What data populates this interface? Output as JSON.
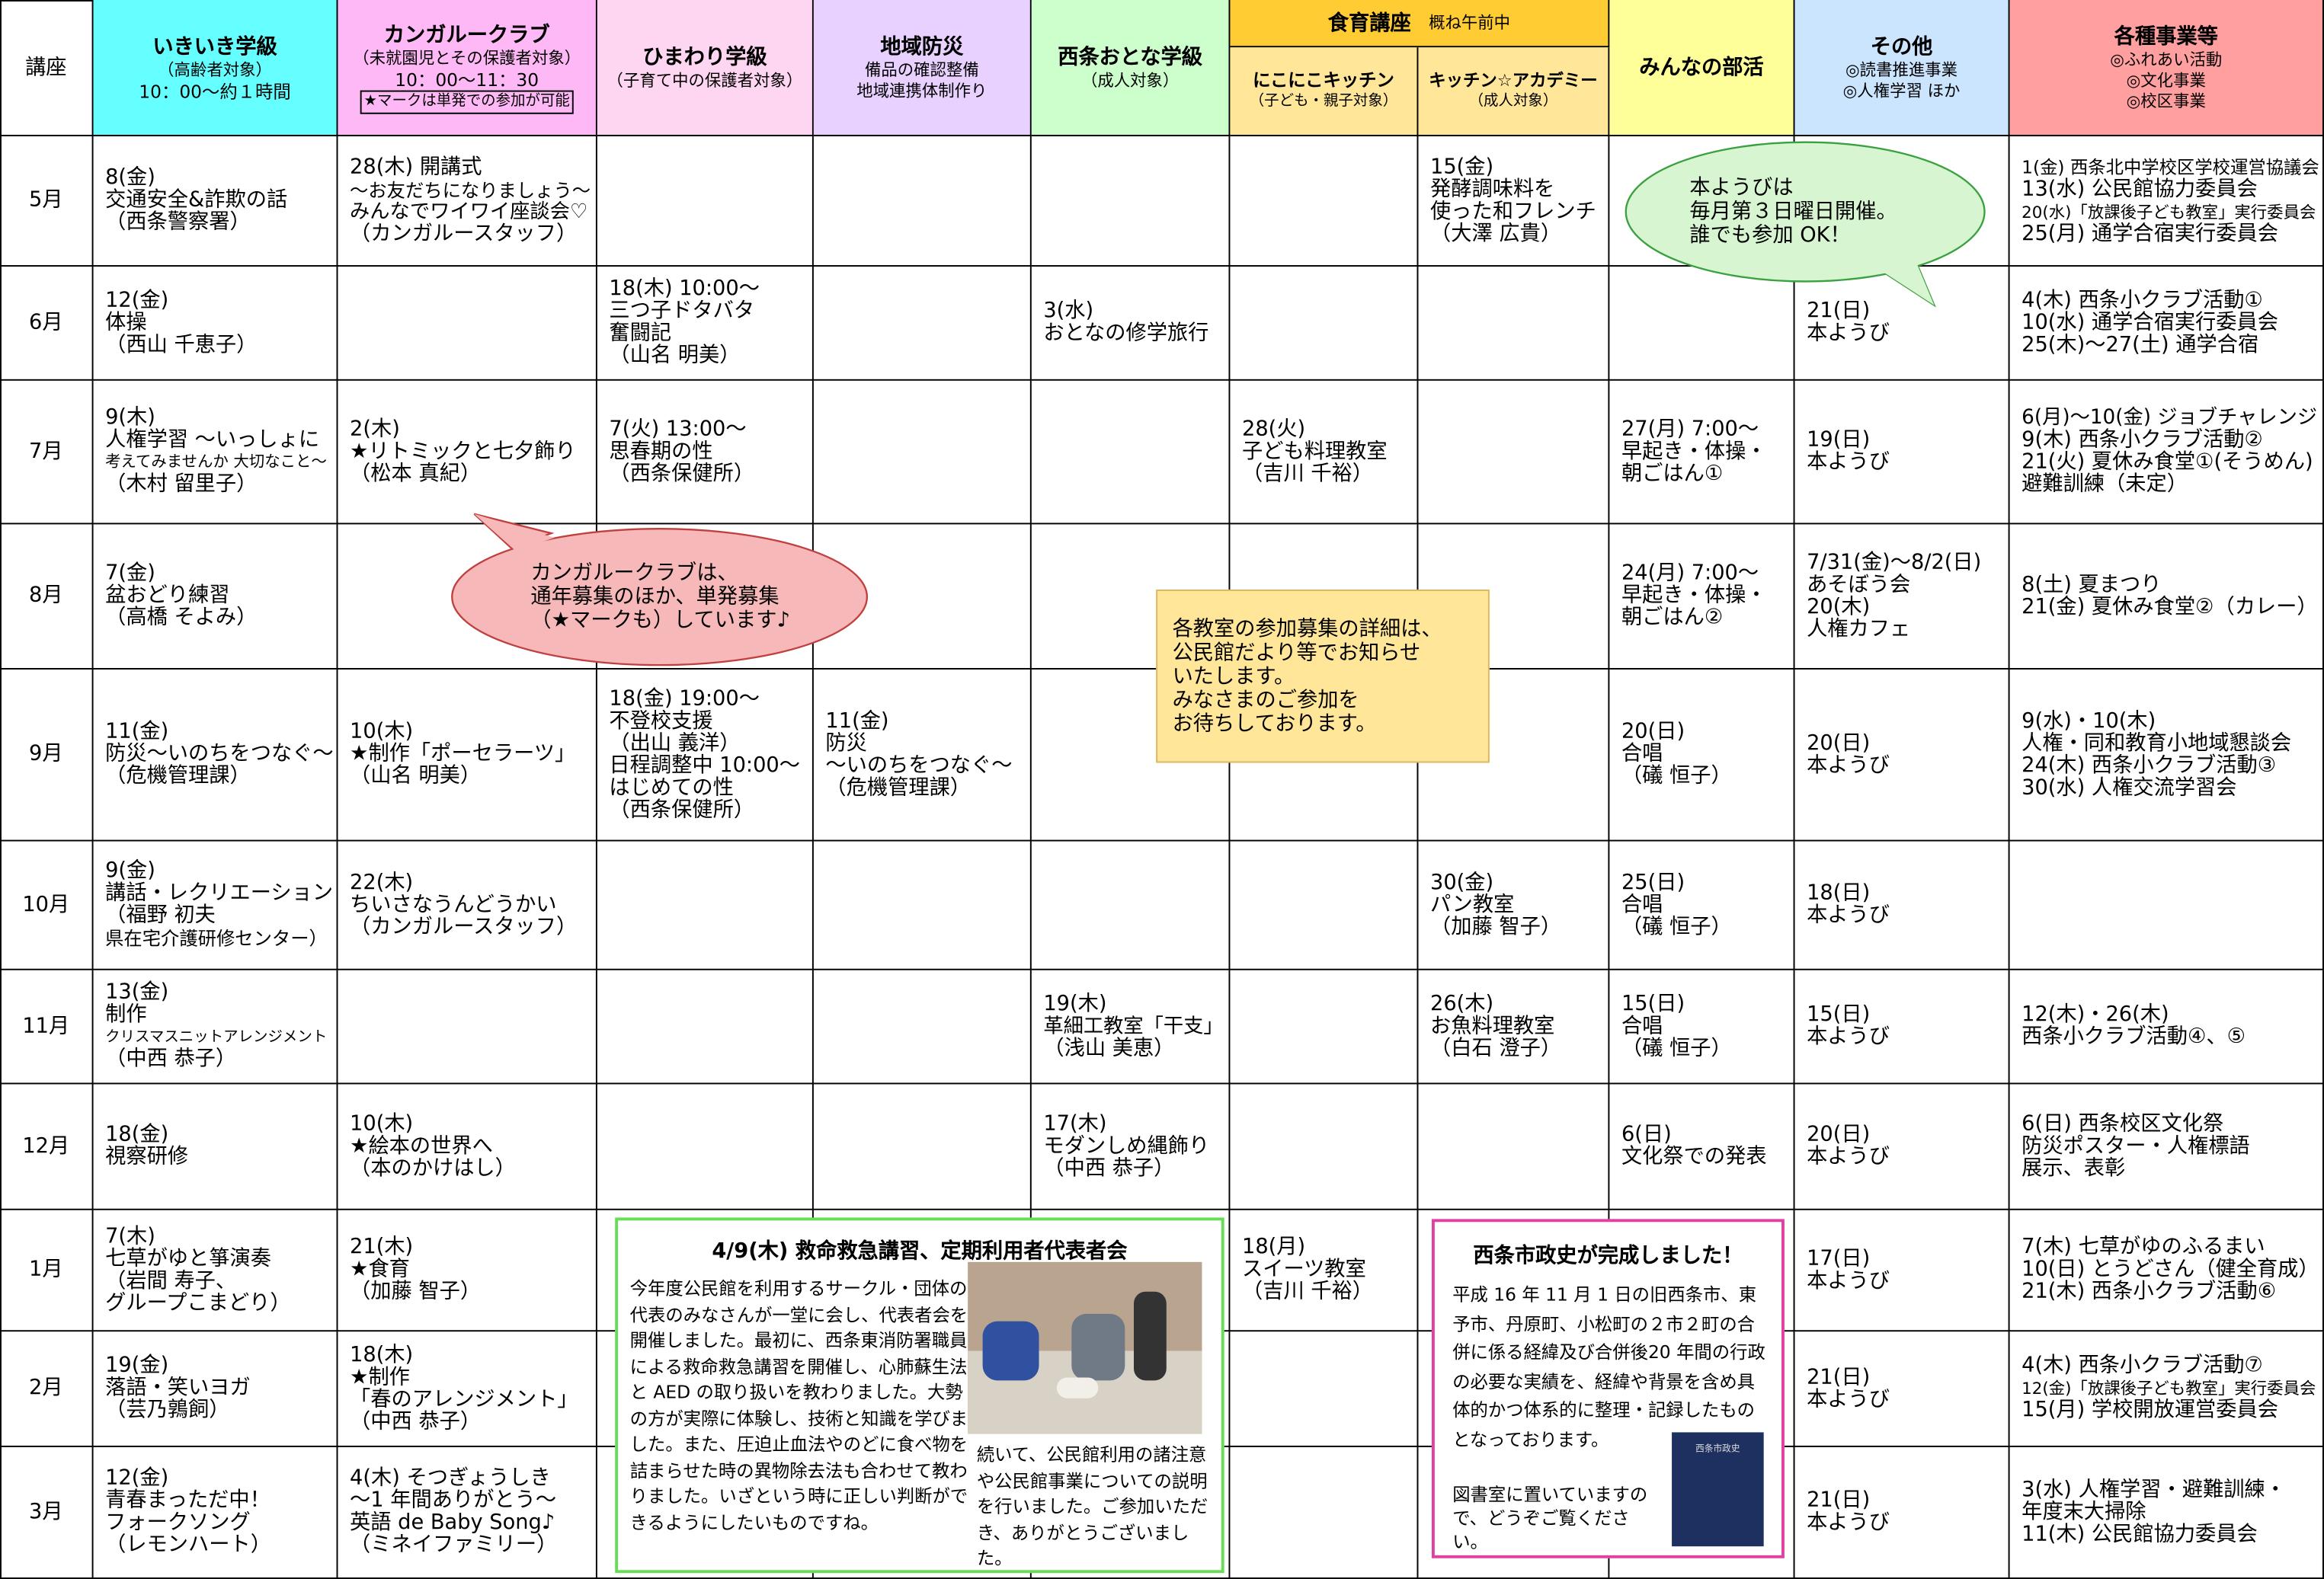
{
  "header": {
    "corner": "講座",
    "columns": [
      {
        "title": "いきいき学級",
        "lines": [
          "（高齢者対象）",
          "10：00～約１時間"
        ]
      },
      {
        "title": "カンガルークラブ",
        "lines": [
          "（未就園児とその保護者対象）",
          "10：00～11：30",
          "★マークは単発での参加が可能"
        ]
      },
      {
        "title": "ひまわり学級",
        "lines": [
          "（子育て中の保護者対象）"
        ]
      },
      {
        "title": "地域防災",
        "lines": [
          "備品の確認整備",
          "地域連携体制作り"
        ]
      },
      {
        "title": "西条おとな学級",
        "lines": [
          "（成人対象）"
        ]
      },
      {
        "title": "にこにこキッチン",
        "lines": [
          "（子ども・親子対象）"
        ]
      },
      {
        "title": "キッチン☆アカデミー",
        "lines": [
          "（成人対象）"
        ]
      },
      {
        "title": "みんなの部活",
        "lines": []
      },
      {
        "title": "その他",
        "lines": [
          "◎読書推進事業",
          "◎人権学習 ほか"
        ]
      },
      {
        "title": "各種事業等",
        "lines": [
          "◎ふれあい活動",
          "◎文化事業",
          "◎校区事業"
        ]
      }
    ],
    "food_group": {
      "title": "食育講座",
      "note": "概ね午前中"
    }
  },
  "table": {
    "rows": [
      {
        "month": "5月",
        "cells": [
          [
            "8(金)",
            "交通安全&詐欺の話",
            "（西条警察署）"
          ],
          [
            "28(木) 開講式",
            "～お友だちになりましょう～",
            "みんなでワイワイ座談会♡",
            "（カンガルースタッフ）"
          ],
          [],
          [],
          [],
          [],
          [
            "15(金)",
            "発酵調味料を",
            "使った和フレンチ",
            "（大澤 広貴）"
          ],
          [],
          [],
          [
            "1(金) 西条北中学校区学校運営協議会",
            "13(水) 公民館協力委員会",
            "20(水)「放課後子ども教室」実行委員会",
            "25(月) 通学合宿実行委員会"
          ]
        ]
      },
      {
        "month": "6月",
        "cells": [
          [
            "12(金)",
            "体操",
            "（西山 千恵子）"
          ],
          [],
          [
            "18(木) 10:00～",
            "三つ子ドタバタ",
            "奮闘記",
            "（山名 明美）"
          ],
          [],
          [
            "3(水)",
            "おとなの修学旅行"
          ],
          [],
          [],
          [],
          [
            "21(日)",
            "本ようび"
          ],
          [
            "4(木) 西条小クラブ活動①",
            "10(水) 通学合宿実行委員会",
            "25(木)～27(土) 通学合宿"
          ]
        ]
      },
      {
        "month": "7月",
        "cells": [
          [
            "9(木)",
            "人権学習 ～いっしょに",
            "考えてみませんか 大切なこと～",
            "（木村 留里子）"
          ],
          [
            "2(木)",
            "★リトミックと七夕飾り",
            "（松本 真紀）"
          ],
          [
            "7(火) 13:00～",
            "思春期の性",
            "（西条保健所）"
          ],
          [],
          [],
          [
            "28(火)",
            "子ども料理教室",
            "（吉川 千裕）"
          ],
          [],
          [
            "27(月) 7:00～",
            "早起き・体操・",
            "朝ごはん①"
          ],
          [
            "19(日)",
            "本ようび"
          ],
          [
            "6(月)～10(金) ジョブチャレンジ",
            "9(木) 西条小クラブ活動②",
            "21(火) 夏休み食堂①(そうめん)",
            "避難訓練（未定）"
          ]
        ]
      },
      {
        "month": "8月",
        "cells": [
          [
            "7(金)",
            "盆おどり練習",
            "（高橋 そよみ）"
          ],
          [],
          [],
          [],
          [],
          [],
          [],
          [
            "24(月) 7:00～",
            "早起き・体操・",
            "朝ごはん②"
          ],
          [
            "7/31(金)～8/2(日)",
            "あそぼう会",
            "20(木)",
            "人権カフェ"
          ],
          [
            "8(土) 夏まつり",
            "21(金) 夏休み食堂②（カレー）"
          ]
        ]
      },
      {
        "month": "9月",
        "cells": [
          [
            "11(金)",
            "防災～いのちをつなぐ～",
            "（危機管理課）"
          ],
          [
            "10(木)",
            "★制作「ポーセラーツ」",
            "（山名 明美）"
          ],
          [
            "18(金) 19:00～",
            "不登校支援",
            "（出山 義洋）",
            "日程調整中 10:00～",
            "はじめての性",
            "（西条保健所）"
          ],
          [
            "11(金)",
            "防災",
            "～いのちをつなぐ～",
            "（危機管理課）"
          ],
          [],
          [],
          [],
          [
            "20(日)",
            "合唱",
            "（礒 恒子）"
          ],
          [
            "20(日)",
            "本ようび"
          ],
          [
            "9(水)・10(木)",
            "人権・同和教育小地域懇談会",
            "24(木) 西条小クラブ活動③",
            "30(水) 人権交流学習会"
          ]
        ]
      },
      {
        "month": "10月",
        "cells": [
          [
            "9(金)",
            "講話・レクリエーション",
            "（福野 初夫",
            "県在宅介護研修センター）"
          ],
          [
            "22(木)",
            "ちいさなうんどうかい",
            "（カンガルースタッフ）"
          ],
          [],
          [],
          [],
          [],
          [
            "30(金)",
            "パン教室",
            "（加藤 智子）"
          ],
          [
            "25(日)",
            "合唱",
            "（礒 恒子）"
          ],
          [
            "18(日)",
            "本ようび"
          ],
          []
        ]
      },
      {
        "month": "11月",
        "cells": [
          [
            "13(金)",
            "制作",
            "クリスマスニットアレンジメント",
            "（中西 恭子）"
          ],
          [],
          [],
          [],
          [
            "19(木)",
            "革細工教室「干支」",
            "（浅山 美恵）"
          ],
          [],
          [
            "26(木)",
            "お魚料理教室",
            "（白石 澄子）"
          ],
          [
            "15(日)",
            "合唱",
            "（礒 恒子）"
          ],
          [
            "15(日)",
            "本ようび"
          ],
          [
            "12(木)・26(木)",
            "西条小クラブ活動④、⑤"
          ]
        ]
      },
      {
        "month": "12月",
        "cells": [
          [
            "18(金)",
            "視察研修"
          ],
          [
            "10(木)",
            "★絵本の世界へ",
            "（本のかけはし）"
          ],
          [],
          [],
          [
            "17(木)",
            "モダンしめ縄飾り",
            "（中西 恭子）"
          ],
          [],
          [],
          [
            "6(日)",
            "文化祭での発表"
          ],
          [
            "20(日)",
            "本ようび"
          ],
          [
            "6(日) 西条校区文化祭",
            "防災ポスター・人権標語",
            "展示、表彰"
          ]
        ]
      },
      {
        "month": "1月",
        "cells": [
          [
            "7(木)",
            "七草がゆと箏演奏",
            "（岩間 寿子、",
            "グループこまどり）"
          ],
          [
            "21(木)",
            "★食育",
            "（加藤 智子）"
          ],
          [],
          [],
          [],
          [
            "18(月)",
            "スイーツ教室",
            "（吉川 千裕）"
          ],
          [],
          [],
          [
            "17(日)",
            "本ようび"
          ],
          [
            "7(木) 七草がゆのふるまい",
            "10(日) とうどさん（健全育成）",
            "21(木) 西条小クラブ活動⑥"
          ]
        ]
      },
      {
        "month": "2月",
        "cells": [
          [
            "19(金)",
            "落語・笑いヨガ",
            "（芸乃鶉飼）"
          ],
          [
            "18(木)",
            "★制作",
            "「春のアレンジメント」",
            "（中西 恭子）"
          ],
          [],
          [],
          [],
          [],
          [],
          [],
          [
            "21(日)",
            "本ようび"
          ],
          [
            "4(木) 西条小クラブ活動⑦",
            "12(金)「放課後子ども教室」実行委員会",
            "15(月) 学校開放運営委員会"
          ]
        ]
      },
      {
        "month": "3月",
        "cells": [
          [
            "12(金)",
            "青春まっただ中！",
            "フォークソング",
            "（レモンハート）"
          ],
          [
            "4(木) そつぎょうしき",
            "～1 年間ありがとう～",
            "英語 de Baby Song♪",
            "（ミネイファミリー）"
          ],
          [],
          [],
          [],
          [],
          [],
          [],
          [
            "21(日)",
            "本ようび"
          ],
          [
            "3(水) 人権学習・避難訓練・",
            "年度末大掃除",
            "11(木) 公民館協力委員会"
          ]
        ]
      }
    ]
  },
  "bubbles": {
    "honyoubi": [
      "本ようびは",
      "毎月第３日曜日開催。",
      "誰でも参加 OK！"
    ],
    "kangaroo": [
      "カンガルークラブは、",
      "通年募集のほか、単発募集",
      "（★マークも）しています♪"
    ]
  },
  "note": [
    "各教室の参加募集の詳細は、",
    "公民館だより等でお知らせ",
    "いたします。",
    "みなさまのご参加を",
    "お待ちしております。"
  ],
  "news": {
    "title": "4/9(木) 救命救急講習、定期利用者代表者会",
    "paragraphs": [
      "今年度公民館を利用するサークル・団体の代表のみなさんが一堂に会し、代表者会を開催しました。最初に、西条東消防署職員による救命救急講習を開催し、心肺蘇生法と AED の取り扱いを教わりました。大勢の方が実際に体験し、技術と知識を学びました。また、圧迫止血法やのどに食べ物を詰まらせた時の異物除去法も合わせて教わりました。いざという時に正しい判断ができるようにしたいものですね。",
      "続いて、公民館利用の諸注意や公民館事業についての説明を行いました。ご参加いただき、ありがとうございました。"
    ]
  },
  "history": {
    "title": "西条市政史が完成しました！",
    "paragraphs": [
      "平成 16 年 11 月 1 日の旧西条市、東予市、丹原町、小松町の２市２町の合併に係る経緯及び合併後20 年間の行政の必要な実績を、経緯や背景を含め具体的かつ体系的に整理・記録したものとなっております。",
      "図書室に置いていますので、どうぞご覧ください。"
    ],
    "book_title": "西条市政史"
  }
}
